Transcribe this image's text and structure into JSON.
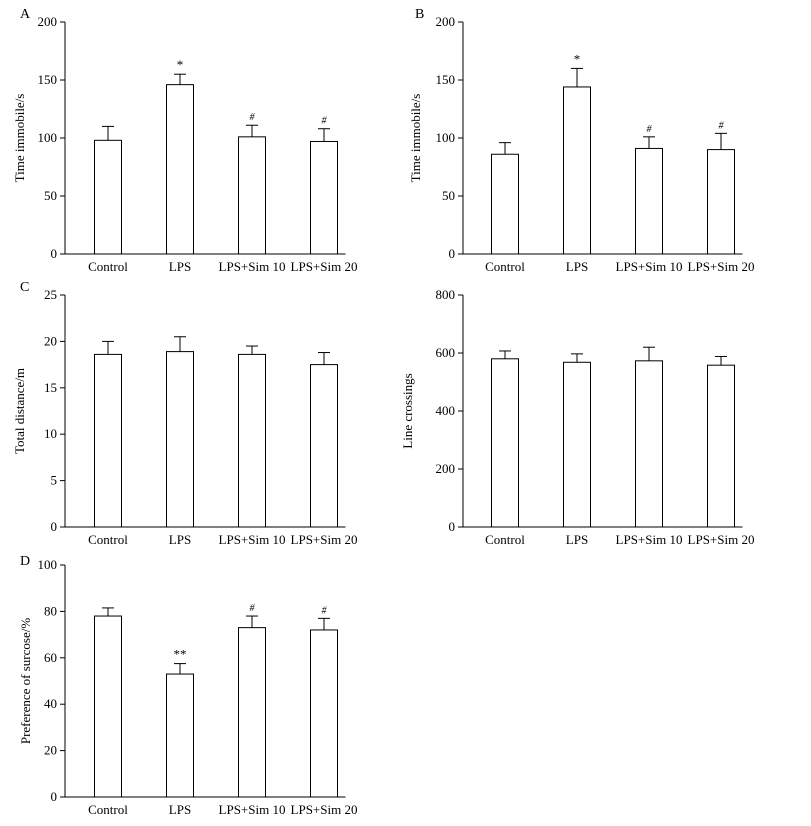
{
  "chart_data": [
    {
      "panel": "A",
      "type": "bar",
      "categories": [
        "Control",
        "LPS",
        "LPS+Sim 10",
        "LPS+Sim 20"
      ],
      "values": [
        98,
        146,
        101,
        97
      ],
      "errors": [
        12,
        9,
        10,
        11
      ],
      "significance": [
        "",
        "*",
        "#",
        "#"
      ],
      "ylabel": "Time immobile/s",
      "ylim": [
        0,
        200
      ],
      "yticks": [
        0,
        50,
        100,
        150,
        200
      ]
    },
    {
      "panel": "B",
      "type": "bar",
      "categories": [
        "Control",
        "LPS",
        "LPS+Sim 10",
        "LPS+Sim 20"
      ],
      "values": [
        86,
        144,
        91,
        90
      ],
      "errors": [
        10,
        16,
        10,
        14
      ],
      "significance": [
        "",
        "*",
        "#",
        "#"
      ],
      "ylabel": "Time immobile/s",
      "ylim": [
        0,
        200
      ],
      "yticks": [
        0,
        50,
        100,
        150,
        200
      ]
    },
    {
      "panel": "C",
      "type": "bar",
      "categories": [
        "Control",
        "LPS",
        "LPS+Sim 10",
        "LPS+Sim 20"
      ],
      "values": [
        18.6,
        18.9,
        18.6,
        17.5
      ],
      "errors": [
        1.4,
        1.6,
        0.9,
        1.3
      ],
      "significance": [
        "",
        "",
        "",
        ""
      ],
      "ylabel": "Total distance/m",
      "ylim": [
        0,
        25
      ],
      "yticks": [
        0,
        5,
        10,
        15,
        20,
        25
      ]
    },
    {
      "panel": "",
      "type": "bar",
      "categories": [
        "Control",
        "LPS",
        "LPS+Sim 10",
        "LPS+Sim 20"
      ],
      "values": [
        580,
        568,
        573,
        558
      ],
      "errors": [
        27,
        29,
        47,
        30
      ],
      "significance": [
        "",
        "",
        "",
        ""
      ],
      "ylabel": "Line crossings",
      "ylim": [
        0,
        800
      ],
      "yticks": [
        0,
        200,
        400,
        600,
        800
      ]
    },
    {
      "panel": "D",
      "type": "bar",
      "categories": [
        "Control",
        "LPS",
        "LPS+Sim 10",
        "LPS+Sim 20"
      ],
      "values": [
        78,
        53,
        73,
        72
      ],
      "errors": [
        3.5,
        4.5,
        5,
        5
      ],
      "significance": [
        "",
        "**",
        "#",
        "#"
      ],
      "ylabel": "Preference of surcose/%",
      "ylim": [
        0,
        100
      ],
      "yticks": [
        0,
        20,
        40,
        60,
        80,
        100
      ]
    }
  ]
}
